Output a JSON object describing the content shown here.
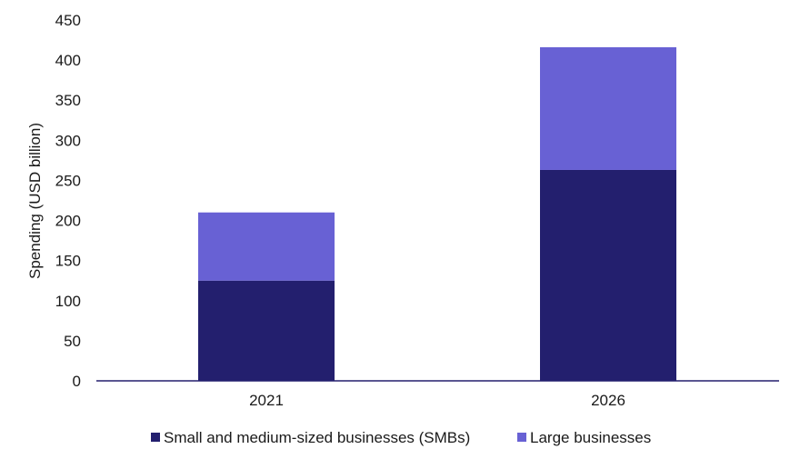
{
  "chart_data": {
    "type": "bar",
    "stacked": true,
    "categories": [
      "2021",
      "2026"
    ],
    "series": [
      {
        "name": "Small and medium-sized businesses (SMBs)",
        "values": [
          125,
          263
        ],
        "color": "#231f6e"
      },
      {
        "name": "Large businesses",
        "values": [
          85,
          153
        ],
        "color": "#6861d4"
      }
    ],
    "title": "",
    "xlabel": "",
    "ylabel": "Spending (USD billion)",
    "ylim": [
      0,
      450
    ],
    "yticks": [
      0,
      50,
      100,
      150,
      200,
      250,
      300,
      350,
      400,
      450
    ],
    "grid": false,
    "legend_position": "bottom",
    "axis_color": "#231f6e"
  }
}
